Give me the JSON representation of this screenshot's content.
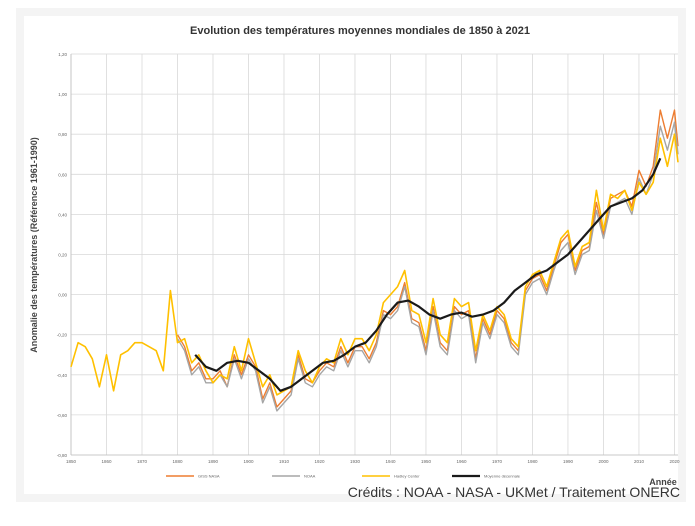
{
  "chart_data": {
    "type": "line",
    "title": "Evolution des températures moyennes mondiales de 1850 à 2021",
    "xlabel": "Année",
    "ylabel": "Anomalie des températures (Référence 1961-1990)",
    "xlim": [
      1850,
      2021
    ],
    "ylim": [
      -0.8,
      1.2
    ],
    "x_ticks": [
      "1850",
      "1860",
      "1870",
      "1880",
      "1890",
      "1900",
      "1910",
      "1920",
      "1930",
      "1940",
      "1950",
      "1960",
      "1970",
      "1980",
      "1990",
      "2000",
      "2010",
      "2020"
    ],
    "y_ticks": [
      "-0,80",
      "-0,60",
      "-0,40",
      "-0,20",
      "0,00",
      "0,20",
      "0,40",
      "0,60",
      "0,80",
      "1,00",
      "1,20"
    ],
    "grid": true,
    "legend_position": "bottom",
    "series": [
      {
        "name": "GISS NASA",
        "color": "#ed7d31",
        "x": [
          1880,
          1882,
          1884,
          1886,
          1888,
          1890,
          1892,
          1894,
          1896,
          1898,
          1900,
          1902,
          1904,
          1906,
          1908,
          1910,
          1912,
          1914,
          1916,
          1918,
          1920,
          1922,
          1924,
          1926,
          1928,
          1930,
          1932,
          1934,
          1936,
          1938,
          1940,
          1942,
          1944,
          1946,
          1948,
          1950,
          1952,
          1954,
          1956,
          1958,
          1960,
          1962,
          1964,
          1966,
          1968,
          1970,
          1972,
          1974,
          1976,
          1978,
          1980,
          1982,
          1984,
          1986,
          1988,
          1990,
          1992,
          1994,
          1996,
          1998,
          2000,
          2002,
          2004,
          2006,
          2008,
          2010,
          2012,
          2014,
          2016,
          2018,
          2020,
          2021
        ],
        "y": [
          -0.2,
          -0.26,
          -0.38,
          -0.34,
          -0.42,
          -0.42,
          -0.38,
          -0.46,
          -0.3,
          -0.4,
          -0.3,
          -0.36,
          -0.52,
          -0.44,
          -0.56,
          -0.52,
          -0.48,
          -0.3,
          -0.42,
          -0.44,
          -0.38,
          -0.34,
          -0.36,
          -0.26,
          -0.34,
          -0.26,
          -0.26,
          -0.32,
          -0.24,
          -0.08,
          -0.1,
          -0.06,
          0.06,
          -0.12,
          -0.14,
          -0.28,
          -0.06,
          -0.24,
          -0.28,
          -0.06,
          -0.1,
          -0.08,
          -0.32,
          -0.12,
          -0.2,
          -0.08,
          -0.12,
          -0.24,
          -0.28,
          0.02,
          0.08,
          0.1,
          0.02,
          0.14,
          0.26,
          0.3,
          0.12,
          0.22,
          0.24,
          0.46,
          0.3,
          0.48,
          0.5,
          0.52,
          0.44,
          0.62,
          0.54,
          0.64,
          0.92,
          0.78,
          0.92,
          0.74
        ]
      },
      {
        "name": "NOAA",
        "color": "#a5a5a5",
        "x": [
          1880,
          1882,
          1884,
          1886,
          1888,
          1890,
          1892,
          1894,
          1896,
          1898,
          1900,
          1902,
          1904,
          1906,
          1908,
          1910,
          1912,
          1914,
          1916,
          1918,
          1920,
          1922,
          1924,
          1926,
          1928,
          1930,
          1932,
          1934,
          1936,
          1938,
          1940,
          1942,
          1944,
          1946,
          1948,
          1950,
          1952,
          1954,
          1956,
          1958,
          1960,
          1962,
          1964,
          1966,
          1968,
          1970,
          1972,
          1974,
          1976,
          1978,
          1980,
          1982,
          1984,
          1986,
          1988,
          1990,
          1992,
          1994,
          1996,
          1998,
          2000,
          2002,
          2004,
          2006,
          2008,
          2010,
          2012,
          2014,
          2016,
          2018,
          2020,
          2021
        ],
        "y": [
          -0.22,
          -0.28,
          -0.4,
          -0.36,
          -0.44,
          -0.44,
          -0.4,
          -0.46,
          -0.32,
          -0.42,
          -0.32,
          -0.38,
          -0.54,
          -0.46,
          -0.58,
          -0.54,
          -0.5,
          -0.32,
          -0.44,
          -0.46,
          -0.4,
          -0.36,
          -0.38,
          -0.28,
          -0.36,
          -0.28,
          -0.28,
          -0.34,
          -0.26,
          -0.1,
          -0.12,
          -0.08,
          0.04,
          -0.14,
          -0.16,
          -0.3,
          -0.08,
          -0.26,
          -0.3,
          -0.08,
          -0.12,
          -0.1,
          -0.34,
          -0.14,
          -0.22,
          -0.1,
          -0.14,
          -0.26,
          -0.3,
          0.0,
          0.06,
          0.08,
          0.0,
          0.12,
          0.22,
          0.26,
          0.1,
          0.2,
          0.22,
          0.42,
          0.28,
          0.44,
          0.46,
          0.48,
          0.4,
          0.58,
          0.5,
          0.6,
          0.84,
          0.72,
          0.86,
          0.7
        ]
      },
      {
        "name": "Hadley Center",
        "color": "#ffc000",
        "x": [
          1850,
          1852,
          1854,
          1856,
          1858,
          1860,
          1862,
          1864,
          1866,
          1868,
          1870,
          1872,
          1874,
          1876,
          1878,
          1880,
          1882,
          1884,
          1886,
          1888,
          1890,
          1892,
          1894,
          1896,
          1898,
          1900,
          1902,
          1904,
          1906,
          1908,
          1910,
          1912,
          1914,
          1916,
          1918,
          1920,
          1922,
          1924,
          1926,
          1928,
          1930,
          1932,
          1934,
          1936,
          1938,
          1940,
          1942,
          1944,
          1946,
          1948,
          1950,
          1952,
          1954,
          1956,
          1958,
          1960,
          1962,
          1964,
          1966,
          1968,
          1970,
          1972,
          1974,
          1976,
          1978,
          1980,
          1982,
          1984,
          1986,
          1988,
          1990,
          1992,
          1994,
          1996,
          1998,
          2000,
          2002,
          2004,
          2006,
          2008,
          2010,
          2012,
          2014,
          2016,
          2018,
          2020,
          2021
        ],
        "y": [
          -0.36,
          -0.24,
          -0.26,
          -0.32,
          -0.46,
          -0.3,
          -0.48,
          -0.3,
          -0.28,
          -0.24,
          -0.24,
          -0.26,
          -0.28,
          -0.38,
          0.02,
          -0.24,
          -0.22,
          -0.34,
          -0.3,
          -0.38,
          -0.44,
          -0.4,
          -0.42,
          -0.26,
          -0.38,
          -0.22,
          -0.34,
          -0.46,
          -0.4,
          -0.5,
          -0.48,
          -0.46,
          -0.28,
          -0.38,
          -0.44,
          -0.36,
          -0.32,
          -0.34,
          -0.22,
          -0.3,
          -0.22,
          -0.22,
          -0.28,
          -0.2,
          -0.04,
          0.0,
          0.04,
          0.12,
          -0.08,
          -0.1,
          -0.24,
          -0.02,
          -0.2,
          -0.24,
          -0.02,
          -0.06,
          -0.04,
          -0.28,
          -0.1,
          -0.18,
          -0.06,
          -0.1,
          -0.22,
          -0.26,
          0.04,
          0.1,
          0.12,
          0.04,
          0.16,
          0.28,
          0.32,
          0.14,
          0.24,
          0.26,
          0.52,
          0.32,
          0.5,
          0.48,
          0.52,
          0.42,
          0.56,
          0.5,
          0.56,
          0.78,
          0.64,
          0.8,
          0.66
        ]
      },
      {
        "name": "Moyenne décennale",
        "color": "#1a1a1a",
        "x": [
          1885,
          1888,
          1891,
          1894,
          1897,
          1900,
          1903,
          1906,
          1909,
          1912,
          1915,
          1918,
          1921,
          1924,
          1927,
          1930,
          1933,
          1936,
          1939,
          1942,
          1945,
          1948,
          1951,
          1954,
          1957,
          1960,
          1963,
          1966,
          1969,
          1972,
          1975,
          1978,
          1981,
          1984,
          1987,
          1990,
          1993,
          1996,
          1999,
          2002,
          2005,
          2008,
          2011,
          2014,
          2016
        ],
        "y": [
          -0.3,
          -0.36,
          -0.38,
          -0.34,
          -0.33,
          -0.34,
          -0.38,
          -0.42,
          -0.48,
          -0.46,
          -0.42,
          -0.38,
          -0.34,
          -0.33,
          -0.3,
          -0.26,
          -0.24,
          -0.18,
          -0.1,
          -0.04,
          -0.03,
          -0.06,
          -0.1,
          -0.12,
          -0.1,
          -0.09,
          -0.11,
          -0.1,
          -0.08,
          -0.04,
          0.02,
          0.06,
          0.1,
          0.12,
          0.16,
          0.2,
          0.26,
          0.32,
          0.38,
          0.44,
          0.46,
          0.48,
          0.52,
          0.6,
          0.68
        ]
      }
    ]
  },
  "credits": "Crédits : NOAA - NASA - UKMet / Traitement ONERC"
}
